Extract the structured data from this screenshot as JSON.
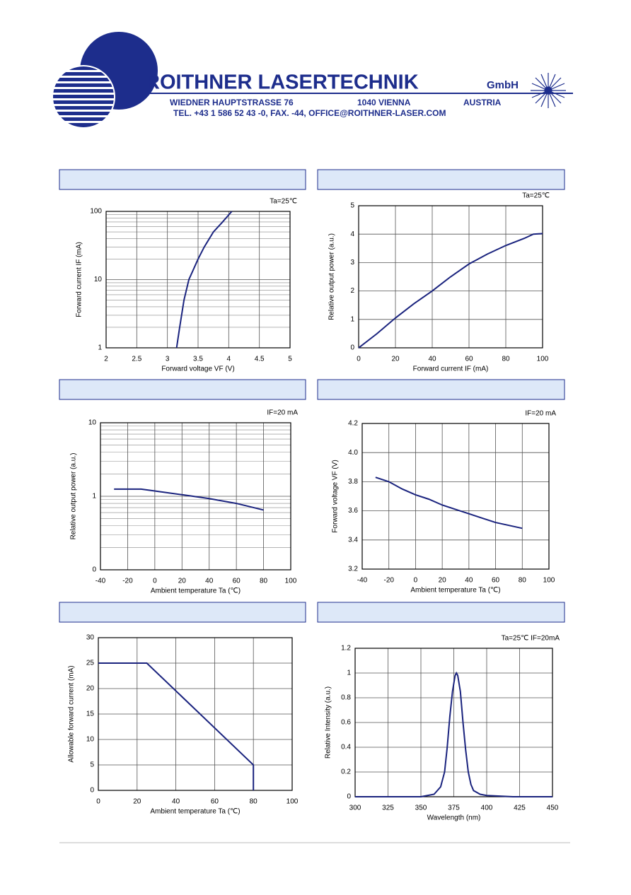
{
  "header": {
    "company": "ROITHNER LASERTECHNIK",
    "suffix": "GmbH",
    "address": "WIEDNER HAUPTSTRASSE 76",
    "city": "1040 VIENNA",
    "country": "AUSTRIA",
    "contact": "TEL. +43 1 586 52 43 -0, FAX. -44, OFFICE@ROITHNER-LASER.COM"
  },
  "chart_data": [
    {
      "type": "line",
      "annotation": "Ta=25℃",
      "xlabel": "Forward voltage VF (V)",
      "ylabel": "Forward current  IF (mA)",
      "ylog": true,
      "grid": true,
      "color": "#1a237e",
      "x": [
        3.15,
        3.2,
        3.27,
        3.35,
        3.5,
        3.6,
        3.75,
        3.9,
        4.05
      ],
      "values": [
        1,
        2,
        5,
        10,
        20,
        30,
        50,
        70,
        100
      ],
      "xlim": [
        2,
        5
      ],
      "xticks": [
        2,
        2.5,
        3,
        3.5,
        4,
        4.5,
        5
      ],
      "ylim": [
        1,
        100
      ],
      "yticks": [
        1,
        10,
        100
      ]
    },
    {
      "type": "line",
      "annotation": "Ta=25℃",
      "xlabel": "Forward current IF (mA)",
      "ylabel": "Relative output power (a.u.)",
      "grid": true,
      "color": "#1a237e",
      "x": [
        0,
        10,
        20,
        30,
        40,
        50,
        60,
        70,
        80,
        90,
        95,
        100
      ],
      "values": [
        0,
        0.5,
        1.05,
        1.55,
        2.0,
        2.5,
        2.95,
        3.3,
        3.6,
        3.85,
        4.0,
        4.02
      ],
      "xlim": [
        0,
        100
      ],
      "xticks": [
        0,
        20,
        40,
        60,
        80,
        100
      ],
      "ylim": [
        0,
        5
      ],
      "yticks": [
        0,
        1,
        2,
        3,
        4,
        5
      ]
    },
    {
      "type": "line",
      "annotation": "IF=20 mA",
      "xlabel": "Ambient temperature Ta (℃)",
      "ylabel": "Relative output power (a.u.)",
      "ylog": true,
      "grid": true,
      "color": "#1a237e",
      "x": [
        -30,
        -10,
        0,
        20,
        40,
        60,
        80
      ],
      "values": [
        1.25,
        1.25,
        1.18,
        1.05,
        0.93,
        0.8,
        0.65
      ],
      "xlim": [
        -40,
        100
      ],
      "xticks": [
        -40,
        -20,
        0,
        20,
        40,
        60,
        80,
        100
      ],
      "ylim": [
        0.1,
        10
      ],
      "yticks": [
        {
          "value": 0.1,
          "label": "0"
        },
        1,
        10
      ]
    },
    {
      "type": "line",
      "annotation": "IF=20 mA",
      "xlabel": "Ambient temperature Ta (℃)",
      "ylabel": "Forward voltage VF (V)",
      "grid": true,
      "color": "#1a237e",
      "x": [
        -30,
        -20,
        -10,
        0,
        10,
        20,
        30,
        40,
        50,
        60,
        70,
        80
      ],
      "values": [
        3.83,
        3.8,
        3.75,
        3.71,
        3.68,
        3.64,
        3.61,
        3.58,
        3.55,
        3.52,
        3.5,
        3.48
      ],
      "xlim": [
        -40,
        100
      ],
      "xticks": [
        -40,
        -20,
        0,
        20,
        40,
        60,
        80,
        100
      ],
      "ylim": [
        3.2,
        4.2
      ],
      "yticks": [
        3.2,
        3.4,
        3.6,
        3.8,
        {
          "value": 4.0,
          "label": "4.0"
        },
        4.2
      ]
    },
    {
      "type": "line",
      "xlabel": "Ambient temperature Ta (℃)",
      "ylabel": "Allowable forward current  (mA)",
      "grid": true,
      "color": "#1a237e",
      "x": [
        0,
        25,
        80,
        80
      ],
      "values": [
        25,
        25,
        5,
        0
      ],
      "xlim": [
        0,
        100
      ],
      "xticks": [
        0,
        20,
        40,
        60,
        80,
        100
      ],
      "ylim": [
        0,
        30
      ],
      "yticks": [
        0,
        5,
        10,
        15,
        20,
        25,
        30
      ]
    },
    {
      "type": "line",
      "annotation": "Ta=25℃  IF=20mA",
      "xlabel": "Wavelength (nm)",
      "ylabel": "Relative Intensity (a.u.)",
      "grid": true,
      "color": "#1a237e",
      "x": [
        300,
        350,
        355,
        360,
        365,
        368,
        370,
        372,
        374,
        376,
        377,
        378,
        380,
        382,
        384,
        386,
        388,
        390,
        395,
        400,
        410,
        420,
        450
      ],
      "values": [
        0,
        0,
        0.01,
        0.02,
        0.08,
        0.2,
        0.4,
        0.65,
        0.85,
        0.98,
        1.0,
        0.98,
        0.85,
        0.6,
        0.38,
        0.2,
        0.1,
        0.05,
        0.02,
        0.01,
        0.005,
        0,
        0
      ],
      "xlim": [
        300,
        450
      ],
      "xticks": [
        300,
        325,
        350,
        375,
        400,
        425,
        450
      ],
      "ylim": [
        0,
        1.2
      ],
      "yticks": [
        0,
        0.2,
        0.4,
        0.6,
        0.8,
        1,
        1.2
      ]
    }
  ]
}
